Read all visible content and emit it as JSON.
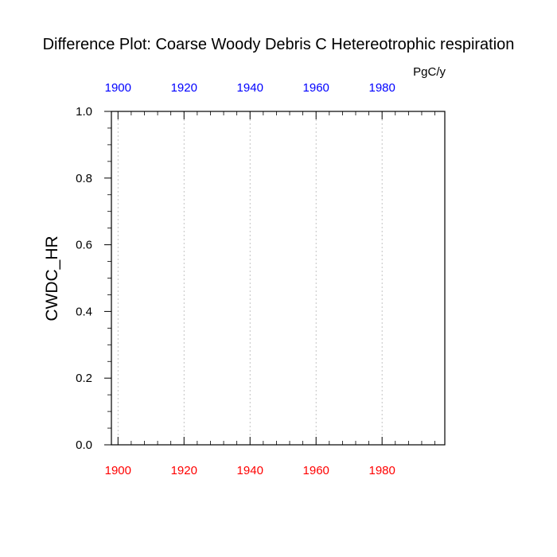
{
  "chart_data": {
    "type": "line",
    "title": "Difference Plot: Coarse Woody Debris C Hetereotrophic respiration",
    "units": "PgC/y",
    "ylabel": "CWDC_HR",
    "xlim": [
      1898,
      1999
    ],
    "ylim": [
      0.0,
      1.0
    ],
    "x_ticks": [
      1900,
      1920,
      1940,
      1960,
      1980
    ],
    "y_ticks": [
      "0.0",
      "0.2",
      "0.4",
      "0.6",
      "0.8",
      "1.0"
    ],
    "grid": "vertical dotted at major x ticks",
    "series": [],
    "colors": {
      "top_axis_labels": "#0000ff",
      "bottom_axis_labels": "#ff0000",
      "grid": "#b4b4b4",
      "frame": "#000000"
    }
  }
}
